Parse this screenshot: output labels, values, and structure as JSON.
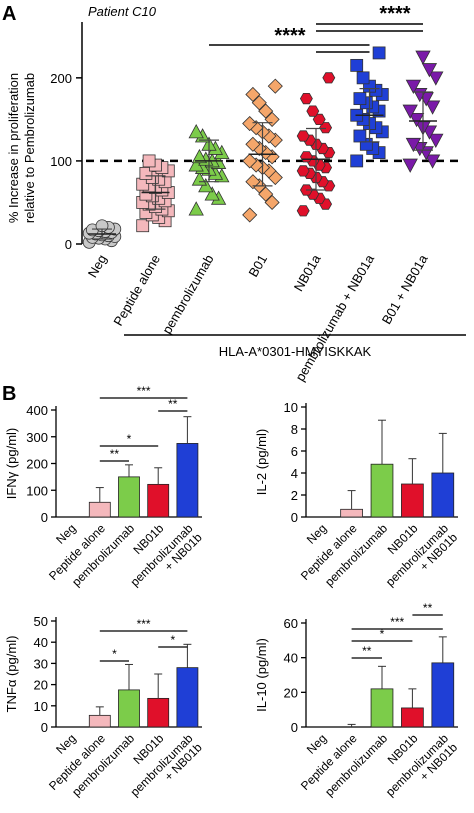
{
  "panel_a": {
    "letter": "A",
    "subtitle": "Patient C10",
    "ylabel_line1": "% Increase in proliferation",
    "ylabel_line2": "relative to Pembrolizumab",
    "group_label": "HLA-A*0301-HMYISKKAK",
    "sig1": "****",
    "sig2": "****"
  },
  "panel_b": {
    "letter": "B"
  },
  "chart_data": [
    {
      "type": "scatter",
      "panel": "A",
      "subtitle": "Patient C10",
      "ylabel": "% Increase in proliferation relative to Pembrolizumab",
      "xlabel": "HLA-A*0301-HMYISKKAK",
      "ylim": [
        0,
        260
      ],
      "yticks": [
        0,
        100,
        200
      ],
      "reference_line": 100,
      "categories": [
        "Neg",
        "Peptide alone",
        "pembrolizumab",
        "B01",
        "NB01a",
        "pembrolizumab + NB01a",
        "B01 + NB01a"
      ],
      "colors": [
        "#c8c8c8",
        "#f4b8bc",
        "#7ccc4a",
        "#f5a66a",
        "#e0102a",
        "#1f3fd6",
        "#7a1aa8"
      ],
      "markers": [
        "circle",
        "square",
        "triangle",
        "diamond",
        "hexagon",
        "square",
        "triangle-down"
      ],
      "means": [
        12,
        62,
        100,
        108,
        102,
        155,
        148
      ],
      "sds": [
        6,
        20,
        25,
        38,
        37,
        32,
        35
      ],
      "points": [
        [
          2,
          4,
          6,
          7,
          8,
          9,
          10,
          11,
          12,
          13,
          14,
          15,
          16,
          17,
          18,
          20,
          22
        ],
        [
          22,
          28,
          32,
          35,
          38,
          40,
          42,
          45,
          48,
          50,
          52,
          55,
          58,
          60,
          62,
          65,
          68,
          70,
          72,
          75,
          78,
          80,
          85,
          88,
          92,
          95,
          100
        ],
        [
          42,
          55,
          60,
          70,
          78,
          82,
          85,
          90,
          92,
          95,
          98,
          100,
          102,
          105,
          110,
          115,
          120,
          130,
          135
        ],
        [
          35,
          50,
          60,
          70,
          75,
          80,
          88,
          92,
          95,
          100,
          105,
          110,
          115,
          120,
          125,
          130,
          135,
          140,
          145,
          150,
          160,
          170,
          180,
          190
        ],
        [
          40,
          48,
          55,
          60,
          65,
          70,
          75,
          80,
          85,
          88,
          92,
          95,
          100,
          105,
          110,
          115,
          120,
          125,
          130,
          140,
          150,
          160,
          175,
          200
        ],
        [
          100,
          110,
          115,
          120,
          130,
          135,
          140,
          145,
          150,
          155,
          160,
          165,
          170,
          175,
          180,
          185,
          190,
          200,
          215,
          230
        ],
        [
          95,
          100,
          110,
          115,
          120,
          125,
          135,
          140,
          150,
          160,
          165,
          175,
          180,
          190,
          200,
          210,
          225
        ]
      ],
      "significance": [
        {
          "from": "pembrolizumab",
          "to": "pembrolizumab + NB01a",
          "label": "****"
        },
        {
          "from": "B01",
          "to": "pembrolizumab + NB01a",
          "label": "****"
        },
        {
          "from": "NB01a",
          "to": "B01 + NB01a",
          "label": "****"
        }
      ]
    },
    {
      "type": "bar",
      "panel": "B-IFNg",
      "ylabel": "IFNγ (pg/ml)",
      "ylim": [
        0,
        400
      ],
      "yticks": [
        0,
        100,
        200,
        300,
        400
      ],
      "categories": [
        "Neg",
        "Peptide alone",
        "pembrolizumab",
        "NB01b",
        "pembrolizumab + NB01b"
      ],
      "values": [
        0,
        55,
        150,
        122,
        275
      ],
      "errors": [
        0,
        55,
        45,
        62,
        100
      ],
      "colors": [
        "#ffffff",
        "#f4b8bc",
        "#7ccc4a",
        "#e0102a",
        "#1f3fd6"
      ],
      "significance": [
        {
          "from": "Peptide alone",
          "to": "pembrolizumab",
          "label": "**"
        },
        {
          "from": "Peptide alone",
          "to": "NB01b",
          "label": "*"
        },
        {
          "from": "NB01b",
          "to": "pembrolizumab + NB01b",
          "label": "**"
        },
        {
          "from": "Peptide alone",
          "to": "pembrolizumab + NB01b",
          "label": "***"
        }
      ]
    },
    {
      "type": "bar",
      "panel": "B-IL2",
      "ylabel": "IL-2 (pg/ml)",
      "ylim": [
        0,
        10
      ],
      "yticks": [
        0,
        2,
        4,
        6,
        8,
        10
      ],
      "categories": [
        "Neg",
        "Peptide alone",
        "pembrolizumab",
        "NB01b",
        "pembrolizumab + NB01b"
      ],
      "values": [
        0,
        0.7,
        4.8,
        3.0,
        4.0
      ],
      "errors": [
        0,
        1.7,
        4.0,
        2.3,
        3.6
      ],
      "colors": [
        "#ffffff",
        "#f4b8bc",
        "#7ccc4a",
        "#e0102a",
        "#1f3fd6"
      ],
      "significance": []
    },
    {
      "type": "bar",
      "panel": "B-TNFa",
      "ylabel": "TNFα (pg/ml)",
      "ylim": [
        0,
        50
      ],
      "yticks": [
        0,
        10,
        20,
        30,
        40,
        50
      ],
      "categories": [
        "Neg",
        "Peptide alone",
        "pembrolizumab",
        "NB01b",
        "pembrolizumab + NB01b"
      ],
      "values": [
        0,
        5.5,
        17.5,
        13.5,
        28
      ],
      "errors": [
        0,
        4,
        12,
        11.5,
        11
      ],
      "colors": [
        "#ffffff",
        "#f4b8bc",
        "#7ccc4a",
        "#e0102a",
        "#1f3fd6"
      ],
      "significance": [
        {
          "from": "Peptide alone",
          "to": "pembrolizumab",
          "label": "*"
        },
        {
          "from": "NB01b",
          "to": "pembrolizumab + NB01b",
          "label": "*"
        },
        {
          "from": "Peptide alone",
          "to": "pembrolizumab + NB01b",
          "label": "***"
        }
      ]
    },
    {
      "type": "bar",
      "panel": "B-IL10",
      "ylabel": "IL-10 (pg/ml)",
      "ylim": [
        0,
        60
      ],
      "yticks": [
        0,
        20,
        40,
        60
      ],
      "categories": [
        "Neg",
        "Peptide alone",
        "pembrolizumab",
        "NB01b",
        "pembrolizumab + NB01b"
      ],
      "values": [
        0,
        0,
        22,
        11,
        37
      ],
      "errors": [
        0,
        1.5,
        13,
        11,
        15
      ],
      "colors": [
        "#ffffff",
        "#f4b8bc",
        "#7ccc4a",
        "#e0102a",
        "#1f3fd6"
      ],
      "significance": [
        {
          "from": "Peptide alone",
          "to": "pembrolizumab",
          "label": "**"
        },
        {
          "from": "Peptide alone",
          "to": "NB01b",
          "label": "*"
        },
        {
          "from": "Peptide alone",
          "to": "pembrolizumab + NB01b",
          "label": "***"
        },
        {
          "from": "NB01b",
          "to": "pembrolizumab + NB01b",
          "label": "**"
        }
      ]
    }
  ]
}
